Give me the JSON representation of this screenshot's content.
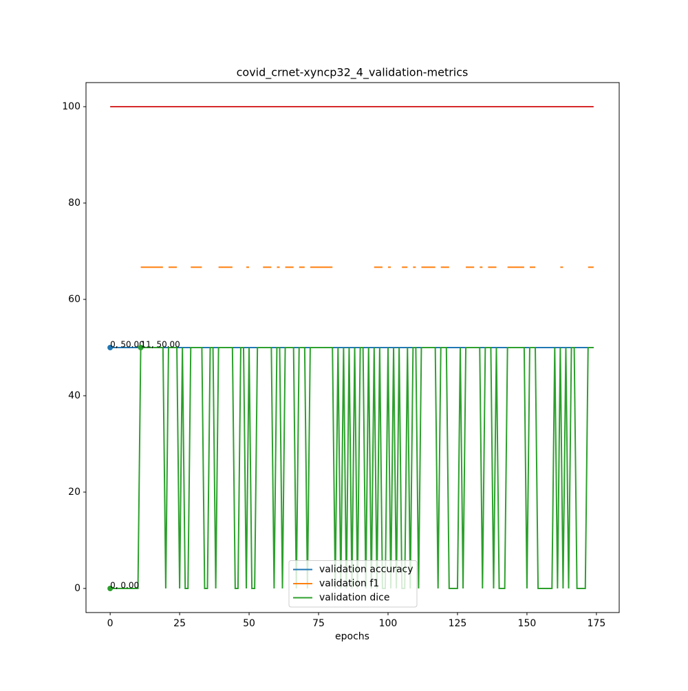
{
  "chart_data": {
    "type": "line",
    "title": "covid_crnet-xyncp32_4_validation-metrics",
    "x_label": "epochs",
    "x": [
      0,
      1,
      2,
      3,
      4,
      5,
      6,
      7,
      8,
      9,
      10,
      11,
      12,
      13,
      14,
      15,
      16,
      17,
      18,
      19,
      20,
      21,
      22,
      23,
      24,
      25,
      26,
      27,
      28,
      29,
      30,
      31,
      32,
      33,
      34,
      35,
      36,
      37,
      38,
      39,
      40,
      41,
      42,
      43,
      44,
      45,
      46,
      47,
      48,
      49,
      50,
      51,
      52,
      53,
      54,
      55,
      56,
      57,
      58,
      59,
      60,
      61,
      62,
      63,
      64,
      65,
      66,
      67,
      68,
      69,
      70,
      71,
      72,
      73,
      74,
      75,
      76,
      77,
      78,
      79,
      80,
      81,
      82,
      83,
      84,
      85,
      86,
      87,
      88,
      89,
      90,
      91,
      92,
      93,
      94,
      95,
      96,
      97,
      98,
      99,
      100,
      101,
      102,
      103,
      104,
      105,
      106,
      107,
      108,
      109,
      110,
      111,
      112,
      113,
      114,
      115,
      116,
      117,
      118,
      119,
      120,
      121,
      122,
      123,
      124,
      125,
      126,
      127,
      128,
      129,
      130,
      131,
      132,
      133,
      134,
      135,
      136,
      137,
      138,
      139,
      140,
      141,
      142,
      143,
      144,
      145,
      146,
      147,
      148,
      149,
      150,
      151,
      152,
      153,
      154,
      155,
      156,
      157,
      158,
      159,
      160,
      161,
      162,
      163,
      164,
      165,
      166,
      167,
      168,
      169,
      170,
      171,
      172,
      173,
      174
    ],
    "series": [
      {
        "name": "validation accuracy",
        "color": "#1f77b4",
        "values": [
          50,
          50,
          50,
          50,
          50,
          50,
          50,
          50,
          50,
          50,
          50,
          50,
          50,
          50,
          50,
          50,
          50,
          50,
          50,
          50,
          50,
          50,
          50,
          50,
          50,
          50,
          50,
          50,
          50,
          50,
          50,
          50,
          50,
          50,
          50,
          50,
          50,
          50,
          50,
          50,
          50,
          50,
          50,
          50,
          50,
          50,
          50,
          50,
          50,
          50,
          50,
          50,
          50,
          50,
          50,
          50,
          50,
          50,
          50,
          50,
          50,
          50,
          50,
          50,
          50,
          50,
          50,
          50,
          50,
          50,
          50,
          50,
          50,
          50,
          50,
          50,
          50,
          50,
          50,
          50,
          50,
          50,
          50,
          50,
          50,
          50,
          50,
          50,
          50,
          50,
          50,
          50,
          50,
          50,
          50,
          50,
          50,
          50,
          50,
          50,
          50,
          50,
          50,
          50,
          50,
          50,
          50,
          50,
          50,
          50,
          50,
          50,
          50,
          50,
          50,
          50,
          50,
          50,
          50,
          50,
          50,
          50,
          50,
          50,
          50,
          50,
          50,
          50,
          50,
          50,
          50,
          50,
          50,
          50,
          50,
          50,
          50,
          50,
          50,
          50,
          50,
          50,
          50,
          50,
          50,
          50,
          50,
          50,
          50,
          50,
          50,
          50,
          50,
          50,
          50,
          50,
          50,
          50,
          50,
          50,
          50,
          50,
          50,
          50,
          50,
          50,
          50,
          50,
          50,
          50,
          50,
          50,
          50,
          50,
          50
        ]
      },
      {
        "name": "validation f1",
        "color": "#ff7f0e",
        "values": [
          null,
          null,
          null,
          null,
          null,
          null,
          null,
          null,
          null,
          null,
          null,
          66.67,
          66.67,
          66.67,
          66.67,
          66.67,
          66.67,
          66.67,
          66.67,
          66.67,
          null,
          66.67,
          66.67,
          66.67,
          66.67,
          null,
          null,
          null,
          null,
          66.67,
          66.67,
          66.67,
          66.67,
          66.67,
          null,
          null,
          null,
          null,
          null,
          66.67,
          66.67,
          66.67,
          66.67,
          66.67,
          66.67,
          null,
          null,
          null,
          null,
          66.67,
          66.67,
          null,
          null,
          null,
          null,
          66.67,
          66.67,
          66.67,
          66.67,
          null,
          66.67,
          66.67,
          null,
          66.67,
          66.67,
          66.67,
          66.67,
          null,
          66.67,
          66.67,
          66.67,
          null,
          66.67,
          66.67,
          66.67,
          66.67,
          66.67,
          66.67,
          66.67,
          66.67,
          66.67,
          null,
          null,
          null,
          null,
          null,
          null,
          null,
          null,
          null,
          null,
          null,
          null,
          null,
          null,
          66.67,
          66.67,
          66.67,
          66.67,
          null,
          66.67,
          66.67,
          null,
          null,
          null,
          66.67,
          66.67,
          66.67,
          null,
          66.67,
          66.67,
          null,
          66.67,
          66.67,
          66.67,
          66.67,
          66.67,
          66.67,
          null,
          66.67,
          66.67,
          66.67,
          66.67,
          null,
          null,
          null,
          null,
          null,
          66.67,
          66.67,
          66.67,
          66.67,
          null,
          66.67,
          66.67,
          null,
          66.67,
          66.67,
          66.67,
          66.67,
          null,
          null,
          null,
          66.67,
          66.67,
          66.67,
          66.67,
          66.67,
          66.67,
          66.67,
          null,
          66.67,
          66.67,
          66.67,
          null,
          null,
          null,
          null,
          null,
          null,
          null,
          null,
          66.67,
          66.67,
          null,
          null,
          null,
          null,
          null,
          null,
          null,
          null,
          66.67,
          66.67,
          66.67
        ]
      },
      {
        "name": "validation dice",
        "color": "#2ca02c",
        "values": [
          0,
          0,
          0,
          0,
          0,
          0,
          0,
          0,
          0,
          0,
          0,
          50,
          50,
          50,
          50,
          50,
          50,
          50,
          50,
          50,
          0,
          50,
          50,
          50,
          50,
          0,
          50,
          0,
          0,
          50,
          50,
          50,
          50,
          50,
          0,
          0,
          50,
          50,
          0,
          50,
          50,
          50,
          50,
          50,
          50,
          0,
          0,
          50,
          50,
          0,
          50,
          0,
          0,
          50,
          50,
          50,
          50,
          50,
          50,
          0,
          50,
          50,
          0,
          50,
          50,
          50,
          50,
          0,
          50,
          50,
          50,
          0,
          50,
          50,
          50,
          50,
          50,
          50,
          50,
          50,
          50,
          0,
          50,
          0,
          50,
          0,
          50,
          0,
          50,
          0,
          50,
          50,
          0,
          50,
          0,
          50,
          0,
          50,
          0,
          0,
          50,
          0,
          50,
          0,
          50,
          0,
          0,
          50,
          0,
          50,
          50,
          0,
          50,
          50,
          50,
          50,
          50,
          50,
          0,
          50,
          50,
          50,
          0,
          0,
          0,
          0,
          50,
          0,
          50,
          50,
          50,
          50,
          50,
          50,
          0,
          50,
          50,
          50,
          0,
          50,
          0,
          0,
          0,
          50,
          50,
          50,
          50,
          50,
          50,
          50,
          0,
          50,
          50,
          50,
          0,
          0,
          0,
          0,
          0,
          0,
          50,
          0,
          50,
          0,
          50,
          0,
          50,
          50,
          0,
          0,
          0,
          0,
          50,
          50,
          50
        ]
      },
      {
        "color": "#d62728",
        "values": [
          100,
          100,
          100,
          100,
          100,
          100,
          100,
          100,
          100,
          100,
          100,
          100,
          100,
          100,
          100,
          100,
          100,
          100,
          100,
          100,
          100,
          100,
          100,
          100,
          100,
          100,
          100,
          100,
          100,
          100,
          100,
          100,
          100,
          100,
          100,
          100,
          100,
          100,
          100,
          100,
          100,
          100,
          100,
          100,
          100,
          100,
          100,
          100,
          100,
          100,
          100,
          100,
          100,
          100,
          100,
          100,
          100,
          100,
          100,
          100,
          100,
          100,
          100,
          100,
          100,
          100,
          100,
          100,
          100,
          100,
          100,
          100,
          100,
          100,
          100,
          100,
          100,
          100,
          100,
          100,
          100,
          100,
          100,
          100,
          100,
          100,
          100,
          100,
          100,
          100,
          100,
          100,
          100,
          100,
          100,
          100,
          100,
          100,
          100,
          100,
          100,
          100,
          100,
          100,
          100,
          100,
          100,
          100,
          100,
          100,
          100,
          100,
          100,
          100,
          100,
          100,
          100,
          100,
          100,
          100,
          100,
          100,
          100,
          100,
          100,
          100,
          100,
          100,
          100,
          100,
          100,
          100,
          100,
          100,
          100,
          100,
          100,
          100,
          100,
          100,
          100,
          100,
          100,
          100,
          100,
          100,
          100,
          100,
          100,
          100,
          100,
          100,
          100,
          100,
          100,
          100,
          100,
          100,
          100,
          100,
          100,
          100,
          100,
          100,
          100,
          100,
          100,
          100,
          100,
          100,
          100,
          100,
          100,
          100,
          100
        ]
      }
    ],
    "annotations": [
      {
        "x": 0,
        "y": 50,
        "text": "0, 50.00",
        "color": "#1f77b4"
      },
      {
        "x": 0,
        "y": 0,
        "text": "0, 0.00",
        "color": "#2ca02c"
      },
      {
        "x": 11,
        "y": 50,
        "text": "11, 50.00",
        "color": "#2ca02c"
      }
    ],
    "xlim": [
      -8.7,
      183.2
    ],
    "ylim": [
      -5,
      105
    ],
    "xticks": [
      0,
      25,
      50,
      75,
      100,
      125,
      150,
      175
    ],
    "yticks": [
      0,
      20,
      40,
      60,
      80,
      100
    ],
    "grid": false,
    "legend": "lower center"
  }
}
